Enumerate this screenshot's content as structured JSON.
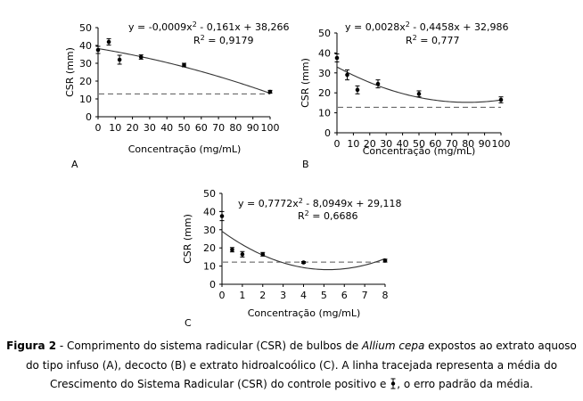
{
  "chart_data": [
    {
      "type": "scatter",
      "panel_label": "A",
      "xlabel": "Concentração (mg/mL)",
      "ylabel": "CSR (mm)",
      "xlim": [
        0,
        100
      ],
      "ylim": [
        0,
        50
      ],
      "xticks": [
        0,
        10,
        20,
        30,
        40,
        50,
        60,
        70,
        80,
        90,
        100
      ],
      "yticks": [
        0,
        10,
        20,
        30,
        40,
        50
      ],
      "equation": "y = -0,0009x",
      "equation_tail": " - 0,161x + 38,266",
      "r2_value": " = 0,9179",
      "fit": {
        "a": -0.0009,
        "b": -0.161,
        "c": 38.266
      },
      "control_mean": 12.8,
      "points": [
        {
          "x": 0,
          "y": 37.5,
          "err": 2
        },
        {
          "x": 6.25,
          "y": 42,
          "err": 1.8
        },
        {
          "x": 12.5,
          "y": 32,
          "err": 2.5
        },
        {
          "x": 25,
          "y": 33.5,
          "err": 1.2
        },
        {
          "x": 50,
          "y": 29,
          "err": 1
        },
        {
          "x": 100,
          "y": 14,
          "err": 0.8
        }
      ]
    },
    {
      "type": "scatter",
      "panel_label": "B",
      "xlabel": "Concentração (mg/mL)",
      "ylabel": "CSR (mm)",
      "xlim": [
        0,
        100
      ],
      "ylim": [
        0,
        50
      ],
      "xticks": [
        0,
        10,
        20,
        30,
        40,
        50,
        60,
        70,
        80,
        90,
        100
      ],
      "yticks": [
        0,
        10,
        20,
        30,
        40,
        50
      ],
      "equation": "y = 0,0028x",
      "equation_tail": " - 0,4458x + 32,986",
      "r2_value": " = 0,777",
      "fit": {
        "a": 0.0028,
        "b": -0.4458,
        "c": 32.986
      },
      "control_mean": 12.8,
      "points": [
        {
          "x": 0,
          "y": 37.5,
          "err": 2
        },
        {
          "x": 6.25,
          "y": 29,
          "err": 2.5
        },
        {
          "x": 12.5,
          "y": 21.5,
          "err": 2
        },
        {
          "x": 25,
          "y": 24.5,
          "err": 2
        },
        {
          "x": 50,
          "y": 19.5,
          "err": 1.5
        },
        {
          "x": 100,
          "y": 16.5,
          "err": 1.5
        }
      ]
    },
    {
      "type": "scatter",
      "panel_label": "C",
      "xlabel": "Concentração (mg/mL)",
      "ylabel": "CSR (mm)",
      "xlim": [
        0,
        8
      ],
      "ylim": [
        0,
        50
      ],
      "xticks": [
        0,
        1,
        2,
        3,
        4,
        5,
        6,
        7,
        8
      ],
      "yticks": [
        0,
        10,
        20,
        30,
        40,
        50
      ],
      "equation": "y = 0,7772x",
      "equation_tail": " - 8,0949x + 29,118",
      "r2_value": " = 0,6686",
      "fit": {
        "a": 0.7772,
        "b": -8.0949,
        "c": 29.118
      },
      "control_mean": 12.2,
      "points": [
        {
          "x": 0,
          "y": 37.5,
          "err": 2.5
        },
        {
          "x": 0.5,
          "y": 19,
          "err": 1.2
        },
        {
          "x": 1,
          "y": 16.5,
          "err": 1.5
        },
        {
          "x": 2,
          "y": 16.5,
          "err": 1
        },
        {
          "x": 4,
          "y": 12,
          "err": 0.5
        },
        {
          "x": 8,
          "y": 13,
          "err": 0.8
        }
      ]
    }
  ],
  "caption": {
    "label": "Figura 2",
    "text_1": " - Comprimento do sistema radicular (CSR) de bulbos de ",
    "species": "Allium cepa",
    "text_2": " expostos ao extrato aquoso do tipo infuso (A), decocto (B) e extrato hidroalcoólico (C). A linha tracejada representa a média do Crescimento do Sistema Radicular (CSR) do controle positivo e ",
    "text_3": ", o erro padrão da média."
  }
}
